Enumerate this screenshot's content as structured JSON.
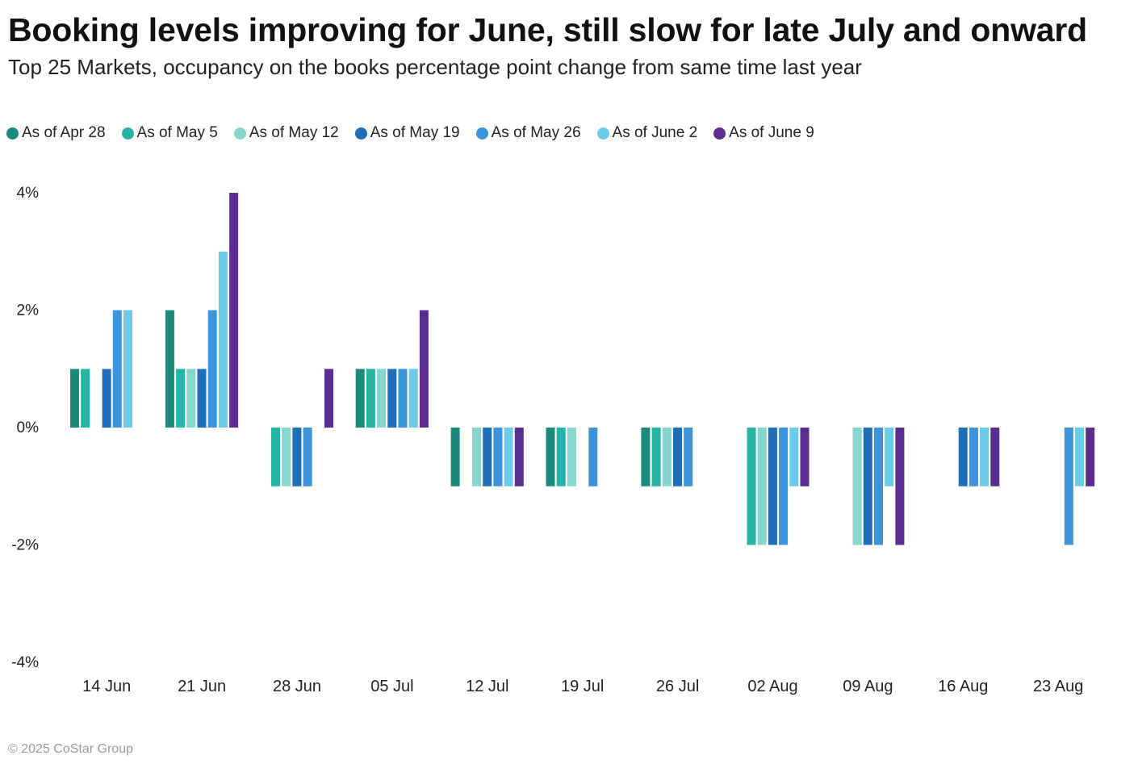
{
  "header": {
    "title": "Booking levels improving for June, still slow for late July and onward",
    "subtitle": "Top 25 Markets, occupancy on the books percentage point change from same time last year"
  },
  "footer": {
    "copyright": "© 2025 CoStar Group"
  },
  "chart_data": {
    "type": "bar",
    "title": "Booking levels improving for June, still slow for late July and onward",
    "subtitle": "Top 25 Markets, occupancy on the books percentage point change from same time last year",
    "xlabel": "",
    "ylabel": "",
    "ylim": [
      -4,
      4
    ],
    "yticks": [
      4,
      2,
      0,
      -2,
      -4
    ],
    "ytick_labels": [
      "4%",
      "2%",
      "0%",
      "-2%",
      "-4%"
    ],
    "grid": false,
    "legend_position": "top-left",
    "categories": [
      "14 Jun",
      "21 Jun",
      "28 Jun",
      "05 Jul",
      "12 Jul",
      "19 Jul",
      "26 Jul",
      "02 Aug",
      "09 Aug",
      "16 Aug",
      "23 Aug"
    ],
    "series": [
      {
        "name": "As of Apr 28",
        "color": "#1a8a7c",
        "values": [
          1,
          2,
          null,
          1,
          -1,
          -1,
          -1,
          null,
          null,
          null,
          null
        ]
      },
      {
        "name": "As of May 5",
        "color": "#25b5a6",
        "values": [
          1,
          1,
          -1,
          1,
          null,
          -1,
          -1,
          -2,
          null,
          null,
          null
        ]
      },
      {
        "name": "As of May 12",
        "color": "#86d6d0",
        "values": [
          null,
          1,
          -1,
          1,
          -1,
          -1,
          -1,
          -2,
          -2,
          null,
          null
        ]
      },
      {
        "name": "As of May 19",
        "color": "#1f6eb8",
        "values": [
          1,
          1,
          -1,
          1,
          -1,
          null,
          -1,
          -2,
          -2,
          -1,
          null
        ]
      },
      {
        "name": "As of May 26",
        "color": "#3b94dc",
        "values": [
          2,
          2,
          -1,
          1,
          -1,
          -1,
          -1,
          -2,
          -2,
          -1,
          -2
        ]
      },
      {
        "name": "As of June 2",
        "color": "#6ccbe9",
        "values": [
          2,
          3,
          null,
          1,
          -1,
          null,
          null,
          -1,
          -1,
          -1,
          -1
        ]
      },
      {
        "name": "As of June 9",
        "color": "#5b2d90",
        "values": [
          null,
          4,
          1,
          2,
          -1,
          null,
          null,
          -1,
          -2,
          -1,
          -1
        ]
      }
    ]
  }
}
